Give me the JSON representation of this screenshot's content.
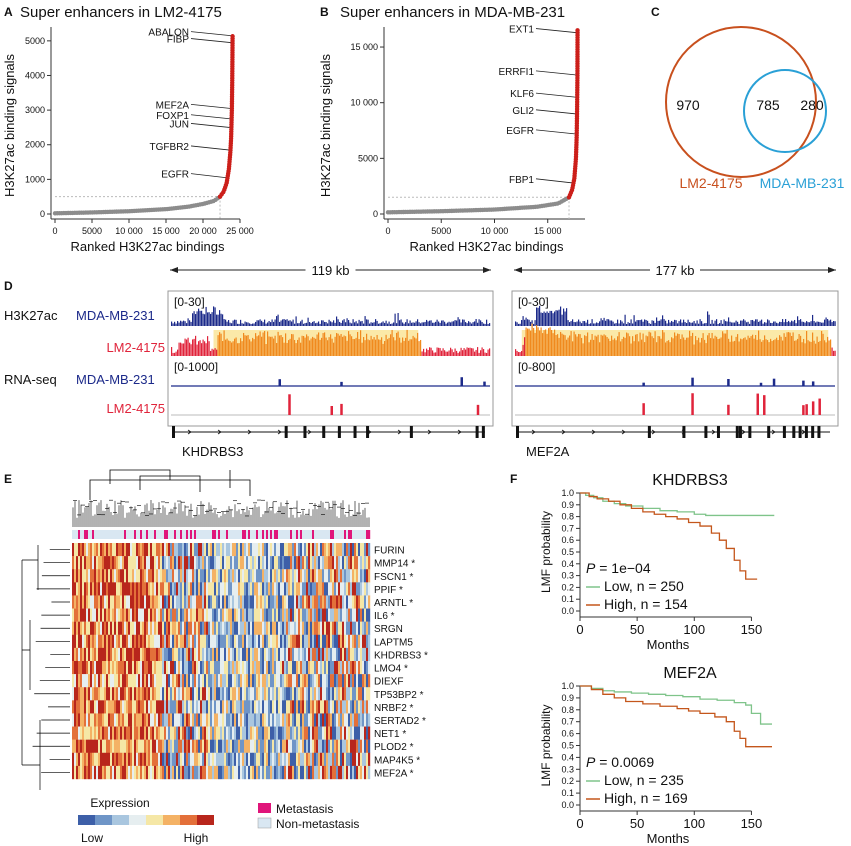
{
  "panels": {
    "A": {
      "letter": "A",
      "title": "Super enhancers in LM2-4175"
    },
    "B": {
      "letter": "B",
      "title": "Super enhancers in MDA-MB-231"
    },
    "C": {
      "letter": "C"
    },
    "D": {
      "letter": "D"
    },
    "E": {
      "letter": "E"
    },
    "F": {
      "letter": "F"
    }
  },
  "colors": {
    "gray_points": "#8c8c8c",
    "red_points": "#cc1f1a",
    "lm2": "#c8501e",
    "mda": "#2aa0d6",
    "track_blue": "#1c2a8a",
    "track_red": "#e0243b",
    "track_orange": "#f08a1e",
    "highlight": "#fbe9a8",
    "metastasis": "#e0157a",
    "nonmetastasis": "#d9e7f2",
    "km_low": "#7fc48a",
    "km_high": "#c4561b"
  },
  "chart_data": [
    {
      "id": "A",
      "type": "scatter",
      "title": "Super enhancers in LM2-4175",
      "xlabel": "Ranked H3K27ac bindings",
      "ylabel": "H3K27ac  binding signals",
      "xlim": [
        0,
        25000
      ],
      "ylim": [
        0,
        5400
      ],
      "xticks": [
        0,
        5000,
        10000,
        15000,
        20000,
        25000
      ],
      "xticklabels": [
        "0",
        "5000",
        "10 000",
        "15 000",
        "20 000",
        "25 000"
      ],
      "yticks": [
        0,
        1000,
        2000,
        3000,
        4000,
        5000
      ],
      "yticklabels": [
        "0",
        "1000",
        "2000",
        "3000",
        "4000",
        "5000"
      ],
      "n_total": 24000,
      "threshold": 500,
      "se_start_rank": 22300,
      "curve": [
        [
          0,
          20
        ],
        [
          5000,
          45
        ],
        [
          10000,
          80
        ],
        [
          15000,
          140
        ],
        [
          18000,
          210
        ],
        [
          20000,
          290
        ],
        [
          21500,
          380
        ],
        [
          22300,
          500
        ],
        [
          22800,
          650
        ],
        [
          23200,
          900
        ],
        [
          23500,
          1300
        ],
        [
          23700,
          1800
        ],
        [
          23800,
          2200
        ],
        [
          23900,
          3000
        ],
        [
          23950,
          3800
        ],
        [
          23980,
          4600
        ],
        [
          24000,
          5200
        ]
      ],
      "labels": [
        {
          "gene": "ABALON",
          "y": 5150
        },
        {
          "gene": "FIBP",
          "y": 4950
        },
        {
          "gene": "MEF2A",
          "y": 3050
        },
        {
          "gene": "FOXP1",
          "y": 2750
        },
        {
          "gene": "JUN",
          "y": 2500
        },
        {
          "gene": "TGFBR2",
          "y": 1850
        },
        {
          "gene": "EGFR",
          "y": 1050
        }
      ]
    },
    {
      "id": "B",
      "type": "scatter",
      "title": "Super enhancers in MDA-MB-231",
      "xlabel": "Ranked H3K27ac bindings",
      "ylabel": "H3K27ac  binding signals",
      "xlim": [
        0,
        18500
      ],
      "ylim": [
        0,
        16800
      ],
      "xticks": [
        0,
        5000,
        10000,
        15000
      ],
      "xticklabels": [
        "0",
        "5000",
        "10 000",
        "15 000"
      ],
      "yticks": [
        0,
        5000,
        10000,
        15000
      ],
      "yticklabels": [
        "0",
        "5000",
        "10 000",
        "15 000"
      ],
      "n_total": 17800,
      "threshold": 1500,
      "se_start_rank": 17000,
      "curve": [
        [
          0,
          150
        ],
        [
          5000,
          250
        ],
        [
          10000,
          400
        ],
        [
          14000,
          650
        ],
        [
          16000,
          950
        ],
        [
          17000,
          1500
        ],
        [
          17300,
          2200
        ],
        [
          17500,
          3200
        ],
        [
          17650,
          5000
        ],
        [
          17720,
          7000
        ],
        [
          17760,
          9500
        ],
        [
          17790,
          12500
        ],
        [
          17800,
          16500
        ]
      ],
      "labels": [
        {
          "gene": "EXT1",
          "y": 16300
        },
        {
          "gene": "ERRFI1",
          "y": 12500
        },
        {
          "gene": "KLF6",
          "y": 10500
        },
        {
          "gene": "GLI2",
          "y": 9000
        },
        {
          "gene": "EGFR",
          "y": 7200
        },
        {
          "gene": "FBP1",
          "y": 2800
        }
      ]
    },
    {
      "id": "C",
      "type": "venn",
      "sets": [
        {
          "name": "LM2-4175",
          "color": "#c8501e"
        },
        {
          "name": "MDA-MB-231",
          "color": "#2aa0d6"
        }
      ],
      "counts": {
        "lm2_only": 970,
        "both": 785,
        "mda_only": 280
      }
    },
    {
      "id": "D",
      "type": "tracks",
      "loci": [
        {
          "gene": "KHDRBS3",
          "span": "119 kb",
          "h3k27ac_range": "[0-30]",
          "rna_range": "[0-1000]"
        },
        {
          "gene": "MEF2A",
          "span": "177 kb",
          "h3k27ac_range": "[0-30]",
          "rna_range": "[0-800]"
        }
      ],
      "row_labels": {
        "assay1": "H3K27ac",
        "assay2": "RNA-seq",
        "cell1": "MDA-MB-231",
        "cell2": "LM2-4175"
      }
    },
    {
      "id": "E",
      "type": "heatmap",
      "genes": [
        "FURIN",
        "MMP14",
        "FSCN1",
        "PPIF",
        "ARNTL",
        "IL6",
        "SRGN",
        "LAPTM5",
        "KHDRBS3",
        "LMO4",
        "DIEXF",
        "TP53BP2",
        "NRBF2",
        "SERTAD2",
        "NET1",
        "PLOD2",
        "MAP4K5",
        "MEF2A"
      ],
      "starred": [
        false,
        true,
        true,
        true,
        true,
        true,
        false,
        false,
        true,
        true,
        false,
        true,
        true,
        true,
        true,
        true,
        true,
        true
      ],
      "legend_title": "Expression",
      "legend_low": "Low",
      "legend_high": "High",
      "group_labels": [
        "Metastasis",
        "Non-metastasis"
      ],
      "colorscale": [
        "#3d5fa8",
        "#6f95c7",
        "#a9c6df",
        "#e6eef0",
        "#f5e7a6",
        "#f4b265",
        "#e3703a",
        "#b8261c"
      ]
    },
    {
      "id": "F1",
      "type": "line",
      "title": "KHDRBS3",
      "xlabel": "Months",
      "ylabel": "LMF probability",
      "xlim": [
        0,
        175
      ],
      "ylim": [
        0,
        1.0
      ],
      "xticks": [
        0,
        50,
        100,
        150
      ],
      "yticks": [
        0.0,
        0.1,
        0.2,
        0.3,
        0.4,
        0.5,
        0.6,
        0.7,
        0.8,
        0.9,
        1.0
      ],
      "pvalue": "1e−04",
      "series": [
        {
          "name": "Low, n = 250",
          "color": "#7fc48a",
          "points": [
            [
              0,
              1.0
            ],
            [
              5,
              0.98
            ],
            [
              12,
              0.96
            ],
            [
              20,
              0.93
            ],
            [
              30,
              0.91
            ],
            [
              40,
              0.89
            ],
            [
              55,
              0.87
            ],
            [
              70,
              0.85
            ],
            [
              85,
              0.84
            ],
            [
              100,
              0.82
            ],
            [
              110,
              0.81
            ],
            [
              125,
              0.81
            ],
            [
              140,
              0.81
            ],
            [
              170,
              0.81
            ]
          ]
        },
        {
          "name": "High, n = 154",
          "color": "#c4561b",
          "points": [
            [
              0,
              1.0
            ],
            [
              8,
              0.97
            ],
            [
              15,
              0.95
            ],
            [
              25,
              0.93
            ],
            [
              35,
              0.9
            ],
            [
              45,
              0.87
            ],
            [
              55,
              0.84
            ],
            [
              65,
              0.82
            ],
            [
              75,
              0.8
            ],
            [
              85,
              0.78
            ],
            [
              95,
              0.75
            ],
            [
              105,
              0.72
            ],
            [
              115,
              0.66
            ],
            [
              122,
              0.6
            ],
            [
              128,
              0.53
            ],
            [
              135,
              0.43
            ],
            [
              140,
              0.34
            ],
            [
              145,
              0.27
            ],
            [
              155,
              0.27
            ]
          ]
        }
      ]
    },
    {
      "id": "F2",
      "type": "line",
      "title": "MEF2A",
      "xlabel": "Months",
      "ylabel": "LMF probability",
      "xlim": [
        0,
        175
      ],
      "ylim": [
        0,
        1.0
      ],
      "xticks": [
        0,
        50,
        100,
        150
      ],
      "yticks": [
        0.0,
        0.1,
        0.2,
        0.3,
        0.4,
        0.5,
        0.6,
        0.7,
        0.8,
        0.9,
        1.0
      ],
      "pvalue": "0.0069",
      "series": [
        {
          "name": "Low, n = 235",
          "color": "#7fc48a",
          "points": [
            [
              0,
              1.0
            ],
            [
              10,
              0.98
            ],
            [
              20,
              0.96
            ],
            [
              30,
              0.95
            ],
            [
              45,
              0.94
            ],
            [
              60,
              0.93
            ],
            [
              75,
              0.92
            ],
            [
              90,
              0.91
            ],
            [
              105,
              0.89
            ],
            [
              120,
              0.88
            ],
            [
              135,
              0.86
            ],
            [
              145,
              0.84
            ],
            [
              150,
              0.77
            ],
            [
              158,
              0.68
            ],
            [
              168,
              0.68
            ]
          ]
        },
        {
          "name": "High, n = 169",
          "color": "#c4561b",
          "points": [
            [
              0,
              1.0
            ],
            [
              10,
              0.97
            ],
            [
              20,
              0.93
            ],
            [
              30,
              0.9
            ],
            [
              40,
              0.87
            ],
            [
              55,
              0.85
            ],
            [
              70,
              0.83
            ],
            [
              85,
              0.81
            ],
            [
              95,
              0.79
            ],
            [
              105,
              0.77
            ],
            [
              118,
              0.74
            ],
            [
              128,
              0.7
            ],
            [
              135,
              0.62
            ],
            [
              140,
              0.56
            ],
            [
              145,
              0.49
            ],
            [
              155,
              0.49
            ],
            [
              168,
              0.49
            ]
          ]
        }
      ]
    }
  ]
}
